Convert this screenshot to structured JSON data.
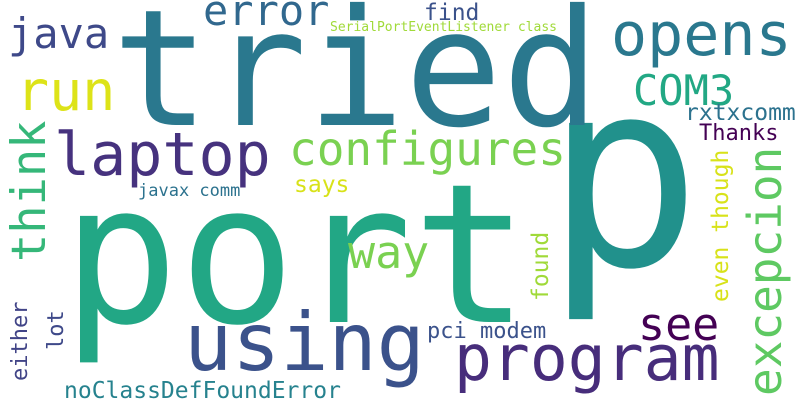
{
  "words": [
    {
      "text": "p",
      "color": "#21918c"
    },
    {
      "text": "port",
      "color": "#22a785"
    },
    {
      "text": "tried",
      "color": "#2a788e"
    },
    {
      "text": "using",
      "color": "#3b528b"
    },
    {
      "text": "program",
      "color": "#472d7b"
    },
    {
      "text": "laptop",
      "color": "#46327e"
    },
    {
      "text": "opens",
      "color": "#2a788e"
    },
    {
      "text": "configures",
      "color": "#7ad151"
    },
    {
      "text": "run",
      "color": "#dde318"
    },
    {
      "text": "java",
      "color": "#3e4989"
    },
    {
      "text": "error",
      "color": "#31688e"
    },
    {
      "text": "COM3",
      "color": "#22a884"
    },
    {
      "text": "way",
      "color": "#7ad151"
    },
    {
      "text": "see",
      "color": "#440154"
    },
    {
      "text": "think",
      "color": "#35b779"
    },
    {
      "text": "excepcion",
      "color": "#5ec962"
    },
    {
      "text": "rxtxcomm",
      "color": "#2c728e"
    },
    {
      "text": "Thanks",
      "color": "#440154"
    },
    {
      "text": "find",
      "color": "#3b528b"
    },
    {
      "text": "SerialPortEventListener class",
      "color": "#a0da39"
    },
    {
      "text": "says",
      "color": "#d8e219"
    },
    {
      "text": "javax comm",
      "color": "#2c728e"
    },
    {
      "text": "found",
      "color": "#a0da39"
    },
    {
      "text": "even though",
      "color": "#d8e219"
    },
    {
      "text": "lot",
      "color": "#3e4989"
    },
    {
      "text": "either",
      "color": "#414487"
    },
    {
      "text": "pci modem",
      "color": "#3b528b"
    },
    {
      "text": "noClassDefFoundError",
      "color": "#26828e"
    }
  ]
}
